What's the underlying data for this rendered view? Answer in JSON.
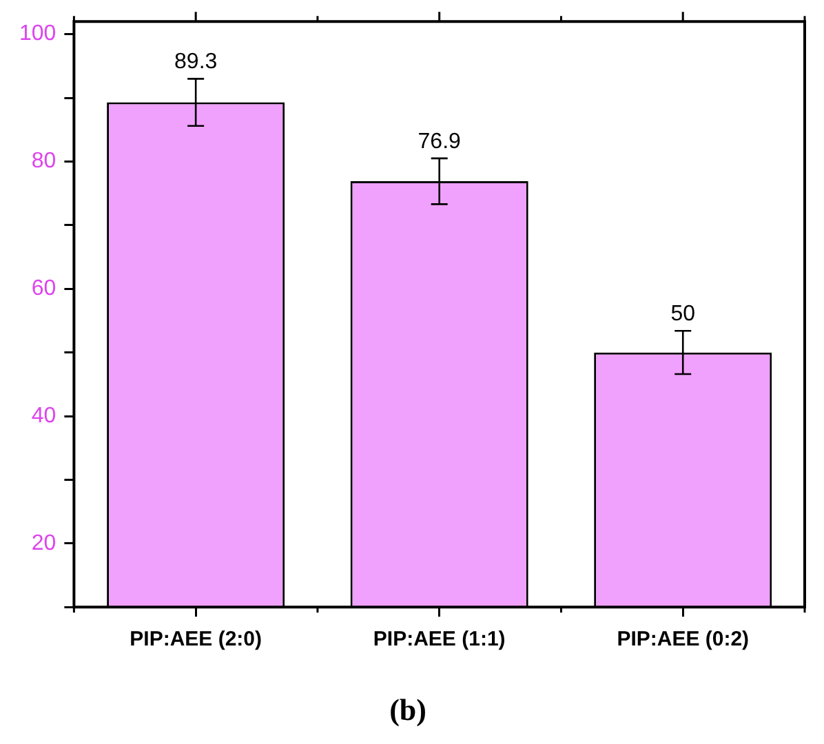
{
  "chart_data": {
    "type": "bar",
    "title": "(b)",
    "categories": [
      "PIP:AEE (2:0)",
      "PIP:AEE (1:1)",
      "PIP:AEE (0:2)"
    ],
    "values": [
      89.3,
      76.9,
      50
    ],
    "errors": [
      3.7,
      3.6,
      3.4
    ],
    "color": "#f0a0fd",
    "ylim": [
      10,
      102
    ],
    "yticks": [
      {
        "value": 10,
        "label": null
      },
      20,
      {
        "value": 30,
        "label": null
      },
      40,
      {
        "value": 50,
        "label": null
      },
      60,
      {
        "value": 70,
        "label": null
      },
      80,
      {
        "value": 90,
        "label": null
      },
      100
    ],
    "grid": false,
    "legend": false,
    "data_labels": true
  }
}
